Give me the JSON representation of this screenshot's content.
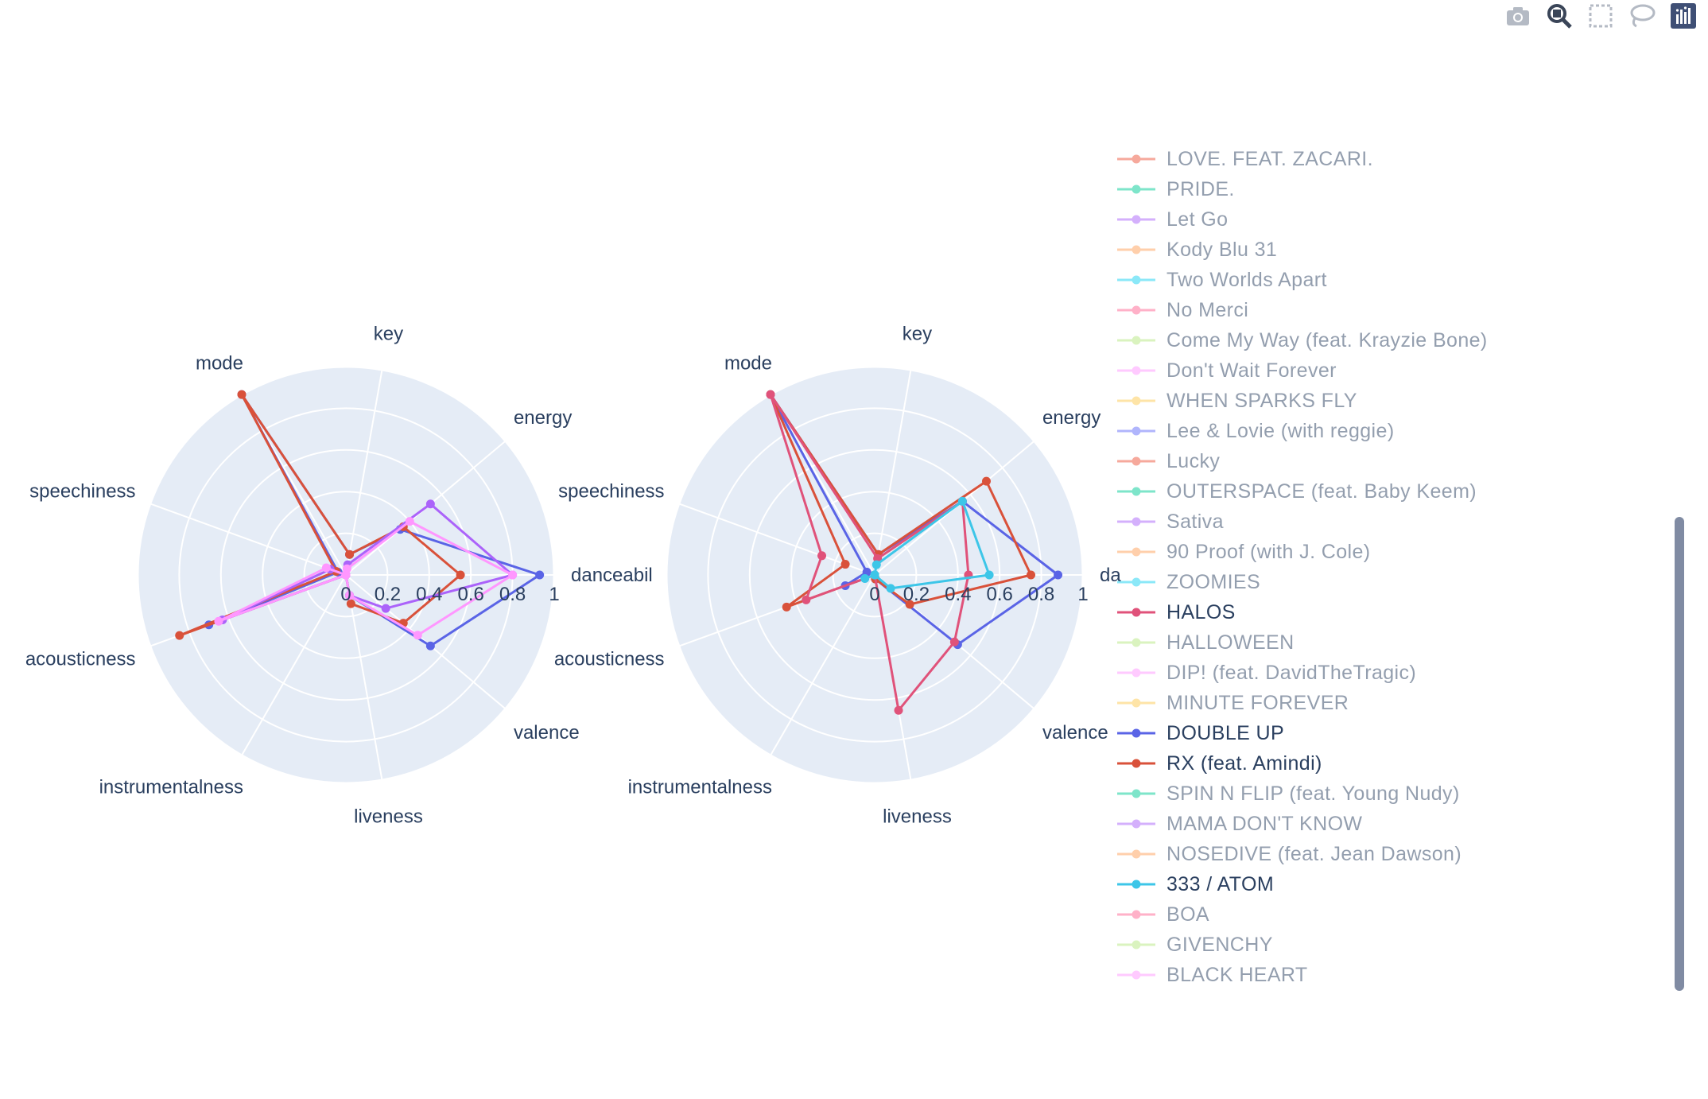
{
  "modebar": {
    "icons": [
      "camera-icon",
      "zoom-icon",
      "box-select-icon",
      "lasso-icon",
      "plotly-logo-icon"
    ]
  },
  "theme": {
    "polar_bg": "#e5ecf6",
    "grid": "#ffffff",
    "text": "#2a3f5f",
    "scrollbar": "#808ba3"
  },
  "legend": {
    "items": [
      {
        "label": "LOVE. FEAT. ZACARI.",
        "color": "#ef553b",
        "visible": false
      },
      {
        "label": "PRIDE.",
        "color": "#00cc96",
        "visible": false
      },
      {
        "label": "Let Go",
        "color": "#ab63fa",
        "visible": false
      },
      {
        "label": "Kody Blu 31",
        "color": "#ffa15a",
        "visible": false
      },
      {
        "label": "Two Worlds Apart",
        "color": "#19d3f3",
        "visible": false
      },
      {
        "label": "No Merci",
        "color": "#ff6692",
        "visible": false
      },
      {
        "label": "Come My Way (feat. Krayzie Bone)",
        "color": "#b6e880",
        "visible": false
      },
      {
        "label": "Don't Wait Forever",
        "color": "#ff97ff",
        "visible": false
      },
      {
        "label": "WHEN SPARKS FLY",
        "color": "#fecb52",
        "visible": false
      },
      {
        "label": "Lee & Lovie (with reggie)",
        "color": "#636efa",
        "visible": false
      },
      {
        "label": "Lucky",
        "color": "#ef553b",
        "visible": false
      },
      {
        "label": "OUTERSPACE (feat. Baby Keem)",
        "color": "#00cc96",
        "visible": false
      },
      {
        "label": "Sativa",
        "color": "#ab63fa",
        "visible": false
      },
      {
        "label": "90 Proof (with J. Cole)",
        "color": "#ffa15a",
        "visible": false
      },
      {
        "label": "ZOOMIES",
        "color": "#19d3f3",
        "visible": false
      },
      {
        "label": "HALOS",
        "color": "#e0527a",
        "visible": true
      },
      {
        "label": "HALLOWEEN",
        "color": "#b6e880",
        "visible": false
      },
      {
        "label": "DIP! (feat. DavidTheTragic)",
        "color": "#ff97ff",
        "visible": false
      },
      {
        "label": "MINUTE FOREVER",
        "color": "#fecb52",
        "visible": false
      },
      {
        "label": "DOUBLE UP",
        "color": "#5a64e6",
        "visible": true
      },
      {
        "label": "RX (feat. Amindi)",
        "color": "#d9513a",
        "visible": true
      },
      {
        "label": "SPIN N FLIP (feat. Young Nudy)",
        "color": "#00cc96",
        "visible": false
      },
      {
        "label": "MAMA DON'T KNOW",
        "color": "#ab63fa",
        "visible": false
      },
      {
        "label": "NOSEDIVE (feat. Jean Dawson)",
        "color": "#ffa15a",
        "visible": false
      },
      {
        "label": "333 / ATOM",
        "color": "#3dc6e8",
        "visible": true
      },
      {
        "label": "BOA",
        "color": "#ff6692",
        "visible": false
      },
      {
        "label": "GIVENCHY",
        "color": "#b6e880",
        "visible": false
      },
      {
        "label": "BLACK HEART",
        "color": "#ff97ff",
        "visible": false
      }
    ]
  },
  "chart_data": [
    {
      "type": "radar",
      "axes": [
        "danceability",
        "energy",
        "key",
        "mode",
        "speechiness",
        "acousticness",
        "instrumentalness",
        "liveness",
        "valence"
      ],
      "axis_display": [
        "danceabil",
        "energy",
        "key",
        "mode",
        "speechiness",
        "acousticness",
        "instrumentalness",
        "liveness",
        "valence"
      ],
      "radial_ticks": [
        "0",
        "0.2",
        "0.4",
        "0.6",
        "0.8",
        "1"
      ],
      "radial_range": [
        0,
        1
      ],
      "series": [
        {
          "color": "#5a64e6",
          "values": [
            0.93,
            0.34,
            0.1,
            1.0,
            0.04,
            0.7,
            0.0,
            0.1,
            0.53
          ]
        },
        {
          "color": "#d9513a",
          "values": [
            0.55,
            0.36,
            0.1,
            1.0,
            0.05,
            0.85,
            0.0,
            0.14,
            0.36
          ]
        },
        {
          "color": "#ab63fa",
          "values": [
            0.8,
            0.53,
            0.05,
            0.0,
            0.08,
            0.63,
            0.0,
            0.1,
            0.25
          ]
        },
        {
          "color": "#ff97ff",
          "values": [
            0.8,
            0.4,
            0.03,
            0.0,
            0.1,
            0.65,
            0.0,
            0.1,
            0.45
          ]
        }
      ]
    },
    {
      "type": "radar",
      "axes": [
        "danceability",
        "energy",
        "key",
        "mode",
        "speechiness",
        "acousticness",
        "instrumentalness",
        "liveness",
        "valence"
      ],
      "axis_display": [
        "da",
        "energy",
        "key",
        "mode",
        "speechiness",
        "acousticness",
        "instrumentalness",
        "liveness",
        "valence"
      ],
      "radial_ticks": [
        "0",
        "0.2",
        "0.4",
        "0.6",
        "0.8",
        "1"
      ],
      "radial_range": [
        0,
        1
      ],
      "series": [
        {
          "name": "DOUBLE UP",
          "color": "#5a64e6",
          "values": [
            0.88,
            0.55,
            0.1,
            1.0,
            0.04,
            0.15,
            0.0,
            0.02,
            0.52
          ]
        },
        {
          "name": "RX (feat. Amindi)",
          "color": "#d9513a",
          "values": [
            0.75,
            0.7,
            0.1,
            1.0,
            0.15,
            0.45,
            0.0,
            0.02,
            0.22
          ]
        },
        {
          "name": "HALOS",
          "color": "#e0527a",
          "values": [
            0.45,
            0.55,
            0.08,
            1.0,
            0.27,
            0.35,
            0.0,
            0.66,
            0.5
          ]
        },
        {
          "name": "333 / ATOM",
          "color": "#3dc6e8",
          "values": [
            0.55,
            0.55,
            0.05,
            0.0,
            0.0,
            0.05,
            0.0,
            0.0,
            0.1
          ]
        }
      ]
    }
  ]
}
